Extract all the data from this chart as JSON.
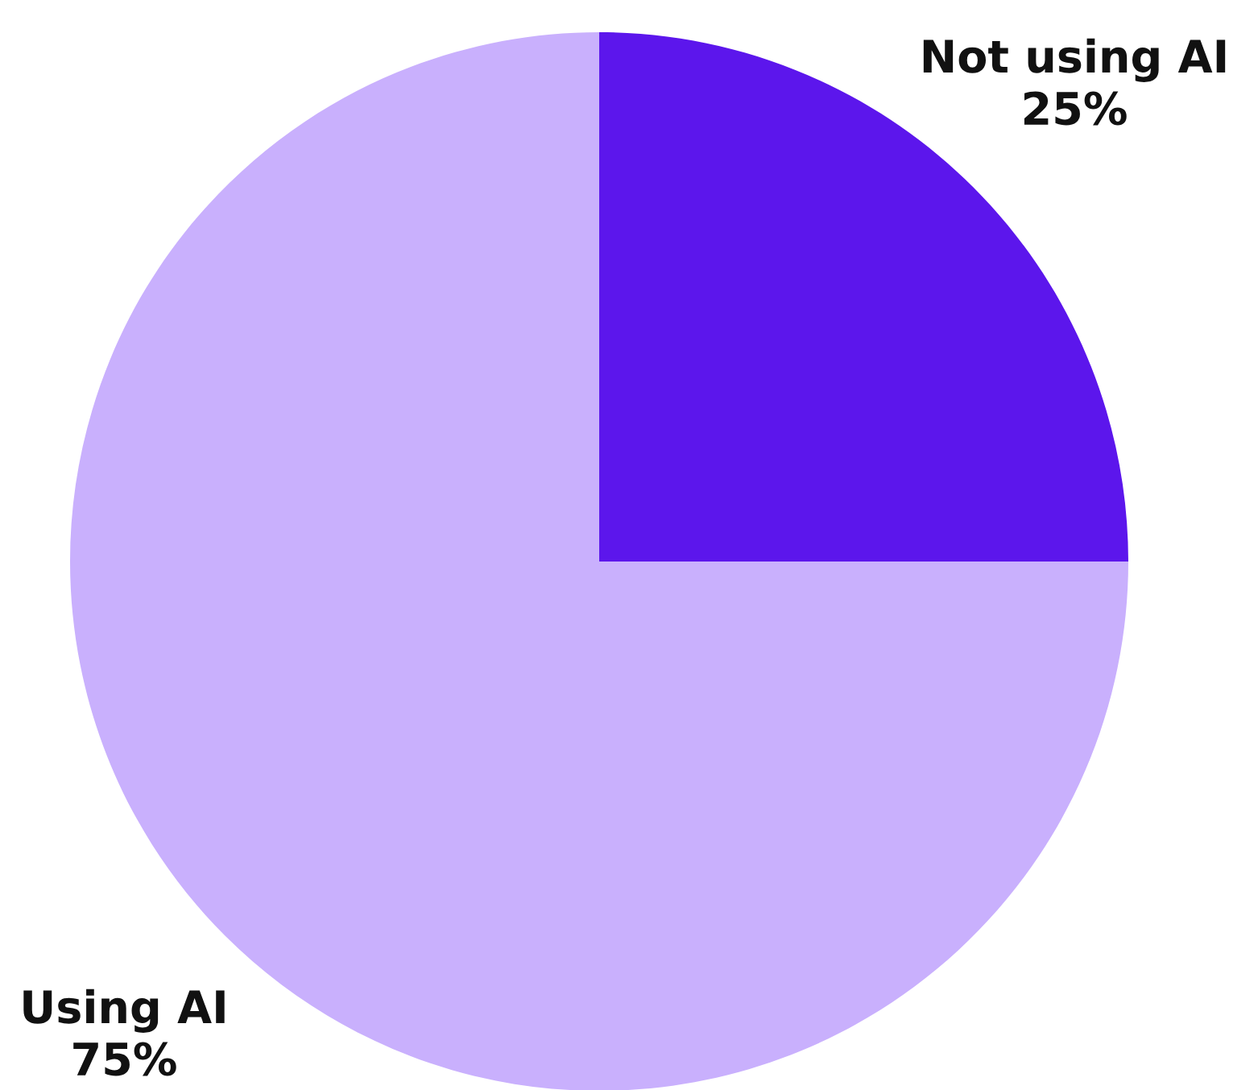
{
  "chart_data": {
    "type": "pie",
    "categories": [
      "Not using AI",
      "Using AI"
    ],
    "values": [
      25,
      75
    ],
    "colors": [
      "#5c16ec",
      "#c9b0fd"
    ],
    "value_labels": [
      "25%",
      "75%"
    ],
    "legend": false
  }
}
